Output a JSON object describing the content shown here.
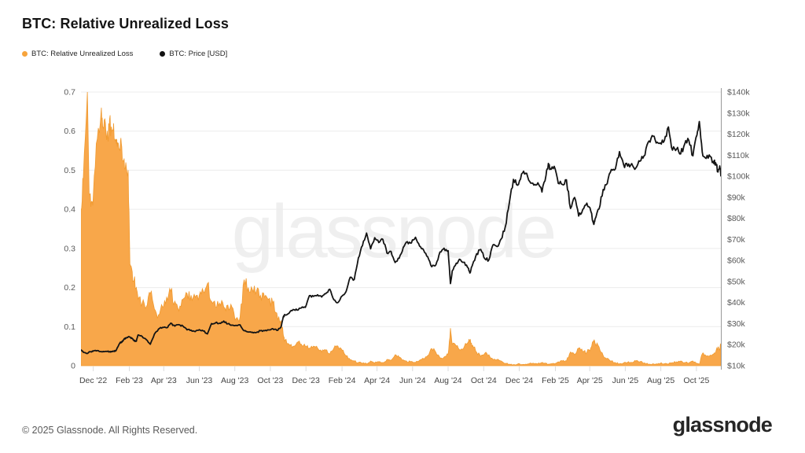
{
  "title": "BTC: Relative Unrealized Loss",
  "legend": [
    {
      "label": "BTC: Relative Unrealized Loss",
      "color": "#F7A43C"
    },
    {
      "label": "BTC: Price [USD]",
      "color": "#111111"
    }
  ],
  "watermark": "glassnode",
  "footer": {
    "copyright": "© 2025 Glassnode. All Rights Reserved.",
    "brand": "glassnode"
  },
  "chart_data": {
    "type": "area+line",
    "title": "BTC: Relative Unrealized Loss",
    "grid": "horizontal",
    "legend_position": "top-left",
    "x_start_date": "2022-11-10",
    "x_end_date": "2025-11-12",
    "x_max_day": 1098,
    "x_tick_labels": [
      {
        "label": "Dec '22",
        "d": 21
      },
      {
        "label": "Feb '23",
        "d": 83
      },
      {
        "label": "Apr '23",
        "d": 142
      },
      {
        "label": "Jun '23",
        "d": 203
      },
      {
        "label": "Aug '23",
        "d": 264
      },
      {
        "label": "Oct '23",
        "d": 325
      },
      {
        "label": "Dec '23",
        "d": 386
      },
      {
        "label": "Feb '24",
        "d": 448
      },
      {
        "label": "Apr '24",
        "d": 508
      },
      {
        "label": "Jun '24",
        "d": 569
      },
      {
        "label": "Aug '24",
        "d": 630
      },
      {
        "label": "Oct '24",
        "d": 691
      },
      {
        "label": "Dec '24",
        "d": 752
      },
      {
        "label": "Feb '25",
        "d": 814
      },
      {
        "label": "Apr '25",
        "d": 873
      },
      {
        "label": "Jun '25",
        "d": 934
      },
      {
        "label": "Aug '25",
        "d": 995
      },
      {
        "label": "Oct '25",
        "d": 1056
      }
    ],
    "left_axis": {
      "series": "BTC: Relative Unrealized Loss",
      "range": [
        0,
        0.7
      ],
      "ticks": [
        0,
        0.1,
        0.2,
        0.3,
        0.4,
        0.5,
        0.6,
        0.7
      ],
      "tick_labels": [
        "0",
        "0.1",
        "0.2",
        "0.3",
        "0.4",
        "0.5",
        "0.6",
        "0.7"
      ]
    },
    "right_axis": {
      "series": "BTC: Price [USD]",
      "range_k": [
        10,
        140
      ],
      "ticks_k": [
        10,
        20,
        30,
        40,
        50,
        60,
        70,
        80,
        90,
        100,
        110,
        120,
        130,
        140
      ],
      "tick_labels": [
        "$10k",
        "$20k",
        "$30k",
        "$40k",
        "$50k",
        "$60k",
        "$70k",
        "$80k",
        "$90k",
        "$100k",
        "$110k",
        "$120k",
        "$130k",
        "$140k"
      ]
    },
    "days": [
      0,
      4,
      11,
      14,
      18,
      21,
      28,
      35,
      38,
      42,
      46,
      49,
      53,
      56,
      60,
      63,
      67,
      70,
      74,
      77,
      81,
      84,
      88,
      91,
      95,
      98,
      105,
      112,
      119,
      126,
      133,
      140,
      147,
      154,
      161,
      168,
      175,
      182,
      189,
      196,
      203,
      210,
      217,
      224,
      231,
      238,
      245,
      252,
      259,
      266,
      273,
      280,
      287,
      294,
      301,
      308,
      315,
      322,
      329,
      336,
      343,
      347,
      350,
      357,
      364,
      371,
      378,
      385,
      392,
      399,
      406,
      413,
      420,
      427,
      434,
      441,
      448,
      455,
      462,
      469,
      476,
      483,
      490,
      497,
      504,
      511,
      518,
      525,
      532,
      539,
      546,
      553,
      560,
      567,
      574,
      581,
      588,
      595,
      602,
      609,
      616,
      623,
      630,
      634,
      637,
      644,
      651,
      658,
      665,
      668,
      672,
      679,
      686,
      693,
      700,
      707,
      714,
      721,
      728,
      735,
      742,
      749,
      756,
      763,
      770,
      777,
      784,
      791,
      798,
      802,
      805,
      812,
      819,
      826,
      833,
      840,
      847,
      854,
      861,
      868,
      875,
      880,
      882,
      889,
      896,
      903,
      910,
      917,
      924,
      931,
      938,
      945,
      952,
      959,
      966,
      973,
      980,
      987,
      994,
      1001,
      1008,
      1015,
      1022,
      1029,
      1036,
      1043,
      1050,
      1057,
      1061,
      1066,
      1071,
      1078,
      1085,
      1089,
      1093,
      1096,
      1098
    ],
    "series": [
      {
        "name": "BTC: Relative Unrealized Loss",
        "type": "area",
        "axis": "left",
        "color": "#F8A74A",
        "edge_color": "#F09A30",
        "values": [
          0.4,
          0.48,
          0.7,
          0.44,
          0.42,
          0.43,
          0.58,
          0.66,
          0.61,
          0.62,
          0.58,
          0.63,
          0.6,
          0.62,
          0.58,
          0.57,
          0.55,
          0.56,
          0.53,
          0.52,
          0.5,
          0.26,
          0.24,
          0.22,
          0.2,
          0.17,
          0.16,
          0.15,
          0.185,
          0.145,
          0.13,
          0.15,
          0.175,
          0.19,
          0.165,
          0.14,
          0.17,
          0.185,
          0.18,
          0.175,
          0.18,
          0.19,
          0.21,
          0.165,
          0.15,
          0.16,
          0.15,
          0.155,
          0.15,
          0.12,
          0.125,
          0.22,
          0.2,
          0.195,
          0.19,
          0.18,
          0.175,
          0.17,
          0.16,
          0.135,
          0.115,
          0.08,
          0.065,
          0.055,
          0.05,
          0.06,
          0.055,
          0.05,
          0.045,
          0.05,
          0.045,
          0.035,
          0.04,
          0.03,
          0.045,
          0.05,
          0.04,
          0.025,
          0.015,
          0.012,
          0.008,
          0.006,
          0.005,
          0.012,
          0.007,
          0.01,
          0.008,
          0.016,
          0.014,
          0.028,
          0.022,
          0.015,
          0.009,
          0.011,
          0.008,
          0.014,
          0.018,
          0.026,
          0.044,
          0.034,
          0.02,
          0.022,
          0.03,
          0.096,
          0.055,
          0.05,
          0.04,
          0.05,
          0.062,
          0.068,
          0.052,
          0.034,
          0.024,
          0.032,
          0.028,
          0.015,
          0.016,
          0.012,
          0.006,
          0.004,
          0.003,
          0.004,
          0.003,
          0.004,
          0.006,
          0.006,
          0.005,
          0.008,
          0.005,
          0.004,
          0.004,
          0.005,
          0.01,
          0.012,
          0.012,
          0.035,
          0.028,
          0.045,
          0.036,
          0.034,
          0.046,
          0.062,
          0.058,
          0.048,
          0.026,
          0.019,
          0.012,
          0.008,
          0.005,
          0.007,
          0.009,
          0.008,
          0.012,
          0.01,
          0.007,
          0.004,
          0.004,
          0.005,
          0.006,
          0.005,
          0.004,
          0.008,
          0.01,
          0.012,
          0.008,
          0.007,
          0.012,
          0.006,
          0.004,
          0.03,
          0.028,
          0.024,
          0.03,
          0.034,
          0.048,
          0.04,
          0.056
        ]
      },
      {
        "name": "BTC: Price [USD]",
        "type": "line",
        "axis": "right",
        "color": "#141414",
        "values_k": [
          17.6,
          16.4,
          15.8,
          16.6,
          16.5,
          17.0,
          17.2,
          16.7,
          16.8,
          16.8,
          16.8,
          16.6,
          16.7,
          16.9,
          17.1,
          18.8,
          20.9,
          21.1,
          22.7,
          23.0,
          23.7,
          23.5,
          22.9,
          21.8,
          21.6,
          24.6,
          23.9,
          22.4,
          20.2,
          25.0,
          27.4,
          28.2,
          28.0,
          30.2,
          28.8,
          29.5,
          28.8,
          27.0,
          26.9,
          26.2,
          27.1,
          26.5,
          25.1,
          30.0,
          30.4,
          30.2,
          31.2,
          29.9,
          29.3,
          29.2,
          29.4,
          26.6,
          26.0,
          25.9,
          25.8,
          26.6,
          26.6,
          27.0,
          27.6,
          26.8,
          28.3,
          33.1,
          34.2,
          34.9,
          36.7,
          36.4,
          37.4,
          37.7,
          43.3,
          42.9,
          43.7,
          42.6,
          44.2,
          46.3,
          41.3,
          40.0,
          43.1,
          45.3,
          52.0,
          51.0,
          61.2,
          67.0,
          73.0,
          65.5,
          70.8,
          68.5,
          70.0,
          63.5,
          64.3,
          59.0,
          61.0,
          66.2,
          68.9,
          68.3,
          71.0,
          66.8,
          64.9,
          61.7,
          57.0,
          57.9,
          64.0,
          65.8,
          64.6,
          49.0,
          55.0,
          58.7,
          60.4,
          59.1,
          56.2,
          54.2,
          58.1,
          63.2,
          65.2,
          60.8,
          60.3,
          67.4,
          66.6,
          70.2,
          75.9,
          87.3,
          98.5,
          95.7,
          101.1,
          101.4,
          97.5,
          95.8,
          96.9,
          92.5,
          100.5,
          106.1,
          103.7,
          104.7,
          96.6,
          96.1,
          98.3,
          84.7,
          89.9,
          81.1,
          84.2,
          87.2,
          83.2,
          77.1,
          79.6,
          84.5,
          93.7,
          96.5,
          103.2,
          103.5,
          111.7,
          105.6,
          104.8,
          106.0,
          103.9,
          107.1,
          109.6,
          116.0,
          119.3,
          115.8,
          115.8,
          116.9,
          123.4,
          112.4,
          112.9,
          110.6,
          115.4,
          117.0,
          109.7,
          119.6,
          126.0,
          111.5,
          108.8,
          110.1,
          107.0,
          106.4,
          102.0,
          104.9,
          99.9
        ]
      }
    ]
  }
}
